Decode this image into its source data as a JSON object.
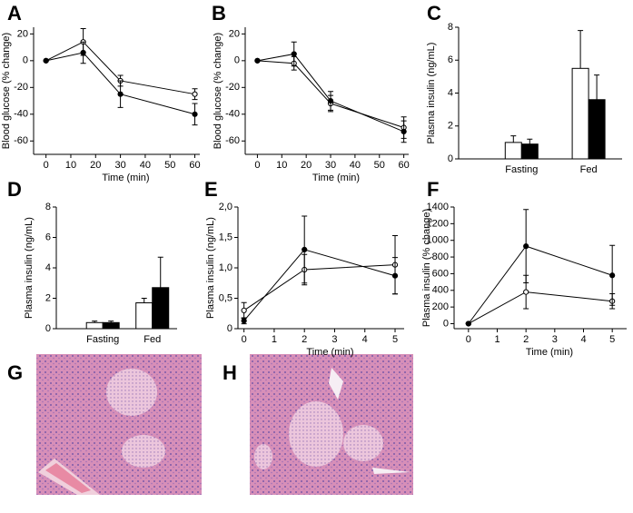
{
  "chart_data": [
    {
      "panel": "A",
      "type": "line",
      "ylabel": "Blood glucose (% change)",
      "xlabel": "Time (min)",
      "x": [
        0,
        15,
        30,
        60
      ],
      "xlim": [
        -5,
        62
      ],
      "xticks": [
        0,
        10,
        20,
        30,
        40,
        50,
        60
      ],
      "ylim": [
        -70,
        25
      ],
      "yticks": [
        20,
        0,
        -20,
        -40,
        -60
      ],
      "series": [
        {
          "color": "#000000",
          "fill": "#ffffff",
          "values": [
            0,
            14,
            -15,
            -25
          ],
          "errors": [
            0,
            10,
            4,
            4
          ]
        },
        {
          "color": "#000000",
          "fill": "#000000",
          "values": [
            0,
            6,
            -25,
            -40
          ],
          "errors": [
            0,
            8,
            10,
            8
          ]
        }
      ]
    },
    {
      "panel": "B",
      "type": "line",
      "ylabel": "Blood glucose (% change)",
      "xlabel": "Time (min)",
      "x": [
        0,
        15,
        30,
        60
      ],
      "xlim": [
        -5,
        62
      ],
      "xticks": [
        0,
        10,
        20,
        30,
        40,
        50,
        60
      ],
      "ylim": [
        -70,
        25
      ],
      "yticks": [
        20,
        0,
        -20,
        -40,
        -60
      ],
      "series": [
        {
          "color": "#000000",
          "fill": "#ffffff",
          "values": [
            0,
            -2,
            -32,
            -50
          ],
          "errors": [
            0,
            5,
            6,
            8
          ]
        },
        {
          "color": "#000000",
          "fill": "#000000",
          "values": [
            0,
            5,
            -30,
            -53
          ],
          "errors": [
            0,
            9,
            7,
            8
          ]
        }
      ]
    },
    {
      "panel": "C",
      "type": "bar",
      "ylabel": "Plasma insulin (ng/mL)",
      "categories": [
        "Fasting",
        "Fed"
      ],
      "ylim": [
        0,
        8
      ],
      "yticks": [
        0,
        2,
        4,
        6,
        8
      ],
      "series": [
        {
          "color": "#000000",
          "fill": "#ffffff",
          "values": [
            1.0,
            5.5
          ],
          "errors": [
            0.4,
            2.3
          ]
        },
        {
          "color": "#000000",
          "fill": "#000000",
          "values": [
            0.9,
            3.6
          ],
          "errors": [
            0.3,
            1.5
          ]
        }
      ]
    },
    {
      "panel": "D",
      "type": "bar",
      "ylabel": "Plasma insulin (ng/mL)",
      "categories": [
        "Fasting",
        "Fed"
      ],
      "ylim": [
        0,
        8
      ],
      "yticks": [
        0,
        2,
        4,
        6,
        8
      ],
      "series": [
        {
          "color": "#000000",
          "fill": "#ffffff",
          "values": [
            0.4,
            1.7
          ],
          "errors": [
            0.1,
            0.3
          ]
        },
        {
          "color": "#000000",
          "fill": "#000000",
          "values": [
            0.4,
            2.7
          ],
          "errors": [
            0.1,
            2.0
          ]
        }
      ]
    },
    {
      "panel": "E",
      "type": "line",
      "ylabel": "Plasma insulin (ng/mL)",
      "xlabel": "Time (min)",
      "x": [
        0,
        2,
        5
      ],
      "xlim": [
        -0.2,
        5.3
      ],
      "xticks": [
        0,
        1,
        2,
        3,
        4,
        5
      ],
      "ylim": [
        0,
        2
      ],
      "yticks": [
        0,
        {
          "value": 0.5,
          "label": "0,5"
        },
        {
          "value": 1,
          "label": "1,0"
        },
        {
          "value": 1.5,
          "label": "1,5"
        },
        {
          "value": 2,
          "label": "2,0"
        }
      ],
      "series": [
        {
          "color": "#000000",
          "fill": "#ffffff",
          "values": [
            0.3,
            0.97,
            1.05
          ],
          "errors": [
            0.13,
            0.25,
            0.48
          ]
        },
        {
          "color": "#000000",
          "fill": "#000000",
          "values": [
            0.13,
            1.3,
            0.87
          ],
          "errors": [
            0.05,
            0.55,
            0.3
          ]
        }
      ]
    },
    {
      "panel": "F",
      "type": "line",
      "ylabel": "Plasma insulin (% change)",
      "xlabel": "Time (min)",
      "x": [
        0,
        2,
        5
      ],
      "xlim": [
        -0.5,
        5.5
      ],
      "xticks": [
        0,
        1,
        2,
        3,
        4,
        5
      ],
      "ylim": [
        -60,
        1400
      ],
      "yticks": [
        0,
        200,
        400,
        600,
        800,
        1000,
        1200,
        1400
      ],
      "series": [
        {
          "color": "#000000",
          "fill": "#ffffff",
          "values": [
            0,
            380,
            270
          ],
          "errors": [
            0,
            200,
            90
          ]
        },
        {
          "color": "#000000",
          "fill": "#000000",
          "values": [
            0,
            930,
            580
          ],
          "errors": [
            0,
            440,
            360
          ]
        }
      ]
    }
  ],
  "images": [
    {
      "panel": "G"
    },
    {
      "panel": "H"
    }
  ]
}
